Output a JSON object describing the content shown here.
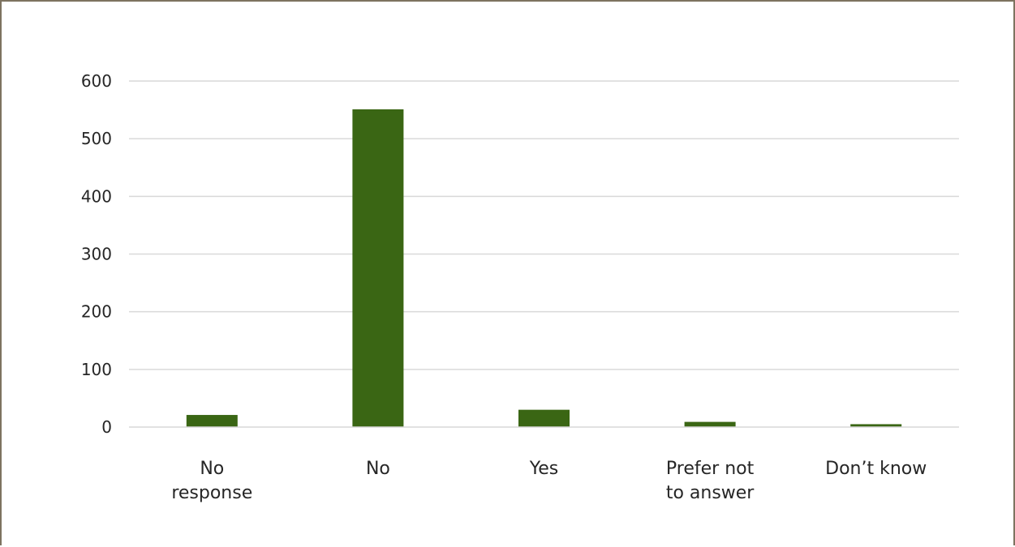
{
  "chart_data": {
    "type": "bar",
    "categories": [
      [
        "No",
        "response"
      ],
      [
        "No"
      ],
      [
        "Yes"
      ],
      [
        "Prefer not",
        "to answer"
      ],
      [
        "Don’t know"
      ]
    ],
    "values": [
      21,
      551,
      30,
      9,
      5
    ],
    "ylim": [
      0,
      600
    ],
    "yticks": [
      0,
      100,
      200,
      300,
      400,
      500,
      600
    ],
    "grid": true,
    "legend": "none",
    "colors": {
      "bar": "#3a6614",
      "grid": "#d9d9d9",
      "frame": "#7d7360",
      "text": "#262626"
    }
  }
}
